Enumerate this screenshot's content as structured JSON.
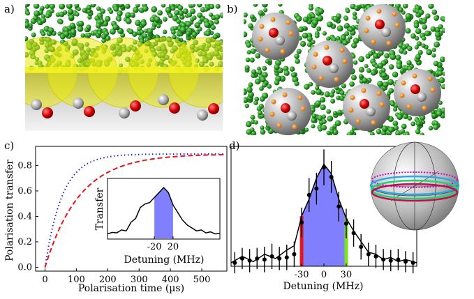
{
  "panels": {
    "a": {
      "label": "a)"
    },
    "b": {
      "label": "b)"
    },
    "c": {
      "label": "c)"
    },
    "d": {
      "label": "d)"
    }
  },
  "chart_data": [
    {
      "id": "c-main",
      "type": "line",
      "xlabel": "Polarisation time (µs)",
      "ylabel": "Polarisation transfer",
      "xlim": [
        -30,
        580
      ],
      "ylim": [
        -0.03,
        0.95
      ],
      "xticks": [
        0,
        100,
        200,
        300,
        400,
        500
      ],
      "yticks": [
        0.0,
        0.2,
        0.4,
        0.6,
        0.8
      ],
      "series": [
        {
          "style": "dotted",
          "color": "#1f1fd0",
          "asymptote": 0.89,
          "tau_us": 55
        },
        {
          "style": "dashed",
          "color": "#e8141b",
          "asymptote": 0.89,
          "tau_us": 110
        }
      ]
    },
    {
      "id": "c-inset",
      "type": "line",
      "xlabel": "Detuning (MHz)",
      "ylabel": "Transfer",
      "xticks": [
        -20,
        20
      ],
      "xlim": [
        -120,
        120
      ],
      "shaded_region": [
        -20,
        20
      ],
      "shade_color": "#8080ff",
      "x": [
        -120,
        -110,
        -100,
        -90,
        -80,
        -70,
        -60,
        -50,
        -40,
        -30,
        -20,
        -10,
        0,
        10,
        20,
        30,
        40,
        50,
        60,
        70,
        80,
        90,
        100,
        110,
        120
      ],
      "y": [
        0.02,
        0.05,
        0.04,
        0.1,
        0.08,
        0.25,
        0.33,
        0.55,
        0.62,
        0.65,
        0.75,
        0.85,
        0.95,
        0.85,
        0.6,
        0.45,
        0.3,
        0.2,
        0.14,
        0.08,
        0.1,
        0.04,
        0.06,
        0.02,
        0.03
      ]
    },
    {
      "id": "d-main",
      "type": "scatter",
      "xlabel": "Detuning (MHz)",
      "xticks": [
        -30,
        0,
        30
      ],
      "xticklabels": [
        "-30",
        "0",
        "30"
      ],
      "xlim": [
        -125,
        125
      ],
      "ylim": [
        0,
        1.0
      ],
      "shaded_region": [
        -30,
        30
      ],
      "shade_color": "#8080ff",
      "marker_lines": [
        {
          "x": -30,
          "color": "#e8141b"
        },
        {
          "x": 30,
          "color": "#7ee21a"
        }
      ],
      "points": [
        {
          "x": -120,
          "y": 0.02,
          "err": 0.1
        },
        {
          "x": -110,
          "y": 0.06,
          "err": 0.1
        },
        {
          "x": -100,
          "y": 0.04,
          "err": 0.11
        },
        {
          "x": -90,
          "y": 0.06,
          "err": 0.1
        },
        {
          "x": -80,
          "y": 0.05,
          "err": 0.12
        },
        {
          "x": -70,
          "y": 0.08,
          "err": 0.12
        },
        {
          "x": -60,
          "y": 0.06,
          "err": 0.11
        },
        {
          "x": -50,
          "y": 0.07,
          "err": 0.12
        },
        {
          "x": -40,
          "y": 0.1,
          "err": 0.12
        },
        {
          "x": -30,
          "y": 0.4,
          "err": 0.14
        },
        {
          "x": -20,
          "y": 0.66,
          "err": 0.16
        },
        {
          "x": -10,
          "y": 0.72,
          "err": 0.15
        },
        {
          "x": 0,
          "y": 0.92,
          "err": 0.17
        },
        {
          "x": 10,
          "y": 0.83,
          "err": 0.15
        },
        {
          "x": 20,
          "y": 0.55,
          "err": 0.14
        },
        {
          "x": 30,
          "y": 0.39,
          "err": 0.14
        },
        {
          "x": 40,
          "y": 0.3,
          "err": 0.13
        },
        {
          "x": 50,
          "y": 0.17,
          "err": 0.12
        },
        {
          "x": 60,
          "y": 0.1,
          "err": 0.11
        },
        {
          "x": 70,
          "y": 0.08,
          "err": 0.11
        },
        {
          "x": 80,
          "y": 0.05,
          "err": 0.1
        },
        {
          "x": 90,
          "y": 0.04,
          "err": 0.1
        },
        {
          "x": 100,
          "y": 0.05,
          "err": 0.1
        },
        {
          "x": 110,
          "y": 0.03,
          "err": 0.1
        },
        {
          "x": 120,
          "y": 0.02,
          "err": 0.1
        }
      ],
      "fit": {
        "x": [
          -125,
          -110,
          -95,
          -80,
          -65,
          -50,
          -40,
          -30,
          -20,
          -10,
          0,
          10,
          20,
          30,
          40,
          50,
          60,
          70,
          80,
          90,
          100,
          110,
          125
        ],
        "y": [
          0.02,
          0.08,
          0.03,
          0.1,
          0.06,
          0.14,
          0.18,
          0.46,
          0.62,
          0.82,
          0.95,
          0.86,
          0.62,
          0.44,
          0.32,
          0.22,
          0.12,
          0.1,
          0.05,
          0.07,
          0.03,
          0.05,
          0.02
        ]
      }
    }
  ]
}
